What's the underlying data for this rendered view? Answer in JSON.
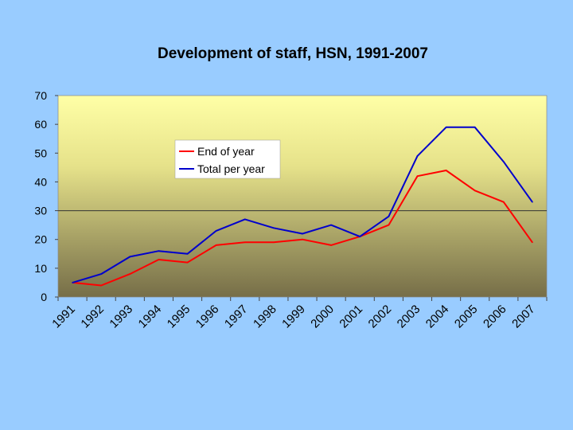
{
  "chart_data": {
    "type": "line",
    "title": "Development of staff, HSN, 1991-2007",
    "xlabel": "",
    "ylabel": "",
    "categories": [
      "1991",
      "1992",
      "1993",
      "1994",
      "1995",
      "1996",
      "1997",
      "1998",
      "1999",
      "2000",
      "2001",
      "2002",
      "2003",
      "2004",
      "2005",
      "2006",
      "2007"
    ],
    "ylim": [
      0,
      70
    ],
    "yticks": [
      0,
      10,
      20,
      30,
      40,
      50,
      60,
      70
    ],
    "reference_line": 30,
    "grid": false,
    "legend_position": "top-left",
    "series": [
      {
        "name": "End of year",
        "color": "#ff0000",
        "values": [
          5,
          4,
          8,
          13,
          12,
          18,
          19,
          19,
          20,
          18,
          21,
          25,
          42,
          44,
          37,
          33,
          19
        ]
      },
      {
        "name": "Total per year",
        "color": "#0000cc",
        "values": [
          5,
          8,
          14,
          16,
          15,
          23,
          27,
          24,
          22,
          25,
          21,
          28,
          49,
          59,
          59,
          47,
          33
        ]
      }
    ]
  }
}
